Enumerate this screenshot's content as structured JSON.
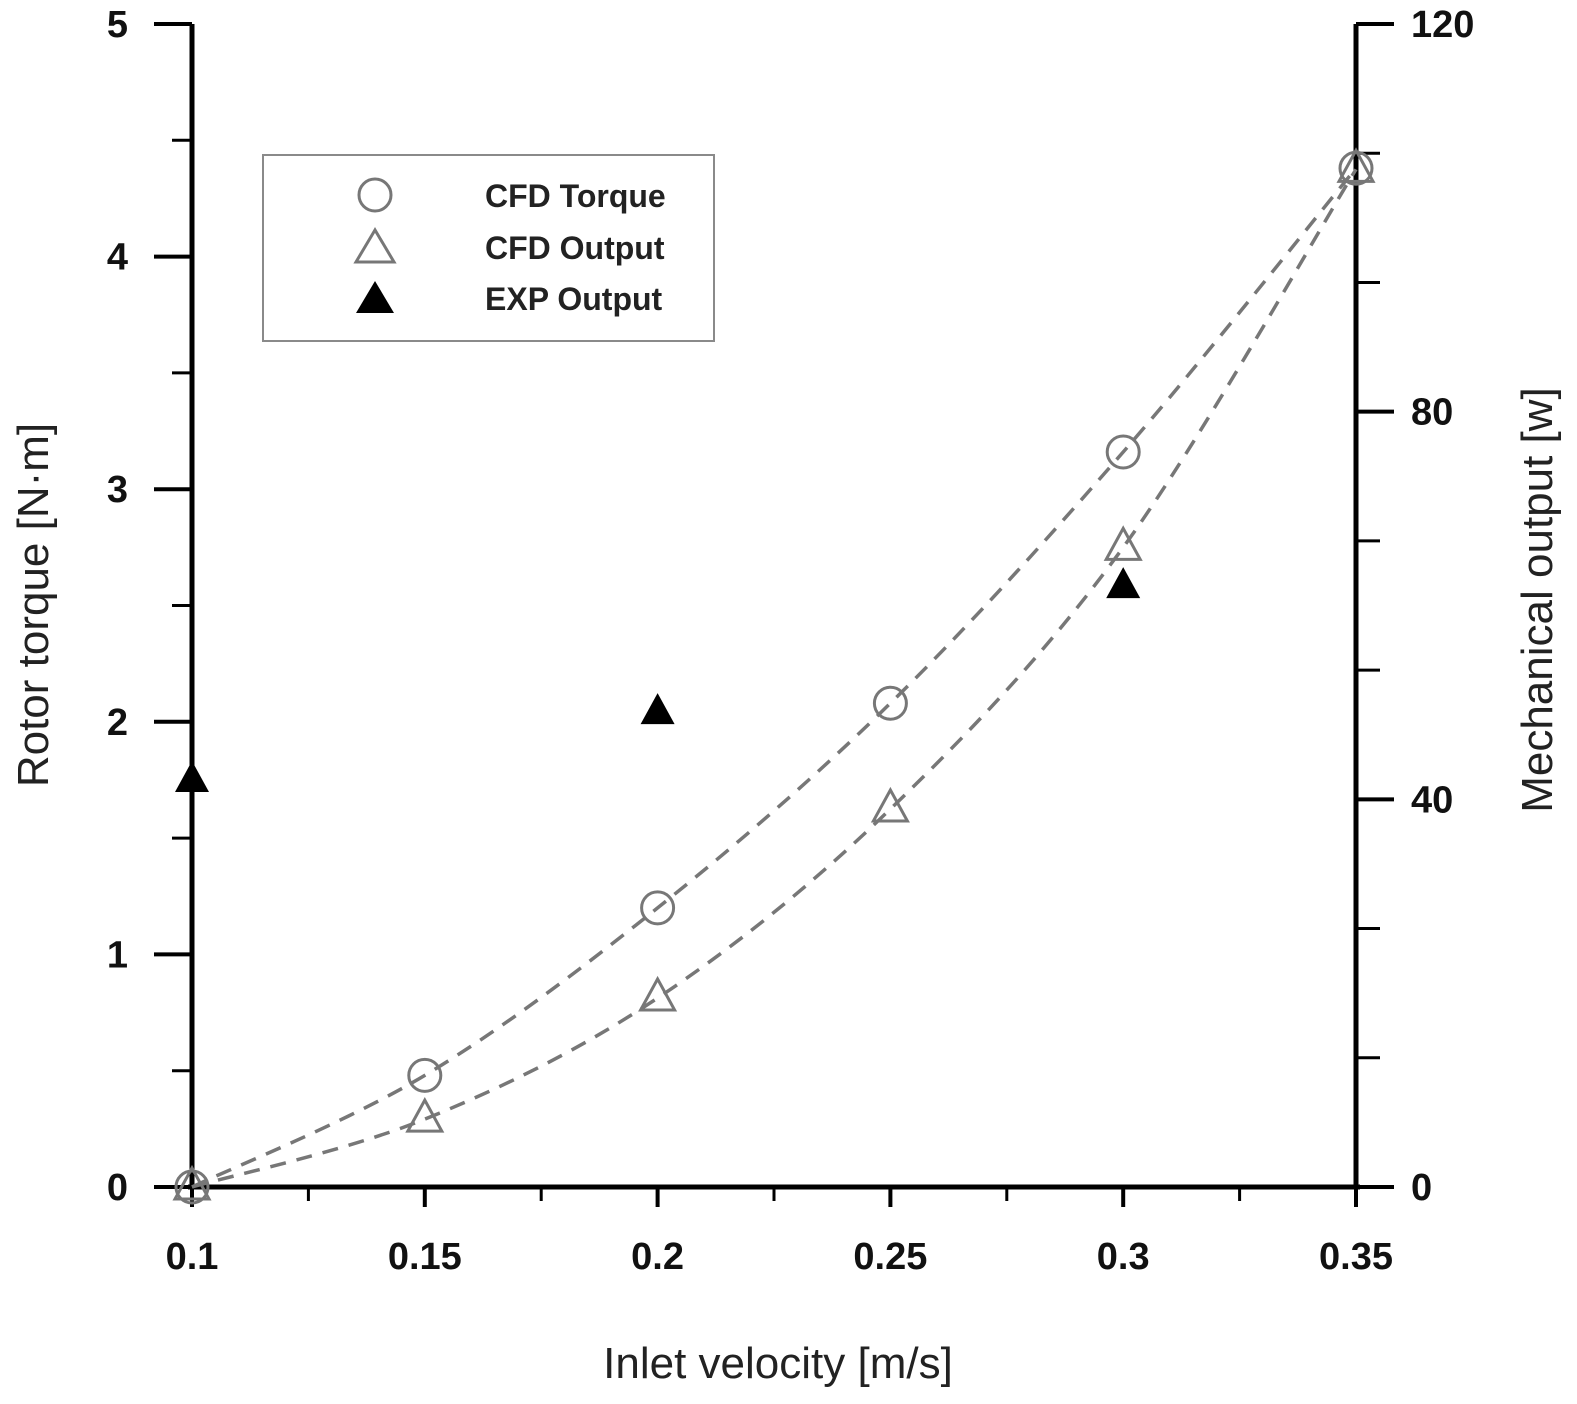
{
  "chart_data": {
    "type": "scatter",
    "xlabel": "Inlet velocity [m/s]",
    "ylabel_left": "Rotor torque [N·m]",
    "ylabel_right": "Mechanical output [w]",
    "x_range": [
      0.1,
      0.35
    ],
    "y_left_range": [
      0,
      5
    ],
    "y_right_range": [
      0,
      120
    ],
    "x_ticks": [
      "0.1",
      "0.15",
      "0.2",
      "0.25",
      "0.3",
      "0.35"
    ],
    "y_left_ticks": [
      "0",
      "1",
      "2",
      "3",
      "4",
      "5"
    ],
    "y_right_ticks": [
      "0",
      "40",
      "80",
      "120"
    ],
    "grid": false,
    "legend_position": "top-left",
    "series": [
      {
        "name": "CFD Torque",
        "marker": "open-circle",
        "axis": "left",
        "color": "#777777",
        "trend": "dashed",
        "x": [
          0.1,
          0.15,
          0.2,
          0.25,
          0.3,
          0.35
        ],
        "y": [
          0.0,
          0.48,
          1.2,
          2.08,
          3.16,
          4.38
        ]
      },
      {
        "name": "CFD Output",
        "marker": "open-triangle",
        "axis": "right",
        "color": "#777777",
        "trend": "dashed",
        "x": [
          0.1,
          0.15,
          0.2,
          0.25,
          0.3,
          0.35
        ],
        "y": [
          0.0,
          7.0,
          19.5,
          39.0,
          66.0,
          105.0
        ]
      },
      {
        "name": "EXP Output",
        "marker": "filled-triangle",
        "axis": "right",
        "color": "#000000",
        "trend": "none",
        "x": [
          0.1,
          0.2,
          0.3
        ],
        "y": [
          42.0,
          49.0,
          62.0
        ]
      }
    ]
  }
}
